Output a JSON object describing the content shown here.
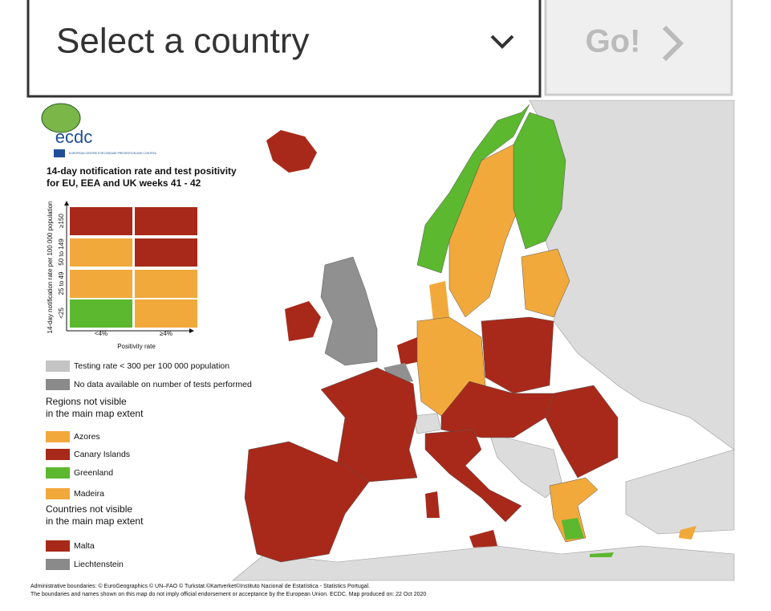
{
  "select": {
    "placeholder": "Select a country"
  },
  "button": {
    "label": "Go!"
  },
  "map": {
    "logo": {
      "name": "ecdc",
      "subtitle": "EUROPEAN CENTRE FOR DISEASE PREVENTION AND CONTROL"
    },
    "title": [
      "14-day notification rate and test positivity",
      "for EU, EEA and UK weeks 41 - 42"
    ],
    "y_axis_label": "14-day notification rate per 100 000 population",
    "row_labels": [
      "≥150",
      "50 to 149",
      "25 to 49",
      "<25"
    ],
    "column_labels": [
      "<4%",
      "≥4%"
    ],
    "x_axis_label": "Positivity rate",
    "testing_legend": [
      "Testing rate < 300 per 100 000 population",
      "No data available on number of tests performed"
    ],
    "regions_heading": [
      "Regions not visible",
      "in the main map extent"
    ],
    "regions": [
      "Azores",
      "Canary Islands",
      "Greenland",
      "Madeira"
    ],
    "countries_heading": [
      "Countries not visible",
      "in the main map extent"
    ],
    "countries": [
      "Malta",
      "Liechtenstein"
    ],
    "footer": [
      "Administrative boundaries: © EuroGeographics © UN–FAO © Turkstat.©Kartverket©Instituto Nacional de Estatística - Statistics Portugal.",
      "The boundaries and names shown on this map do not imply official endorsement or acceptance by the European Union. ECDC. Map produced on: 22 Oct 2020"
    ]
  }
}
